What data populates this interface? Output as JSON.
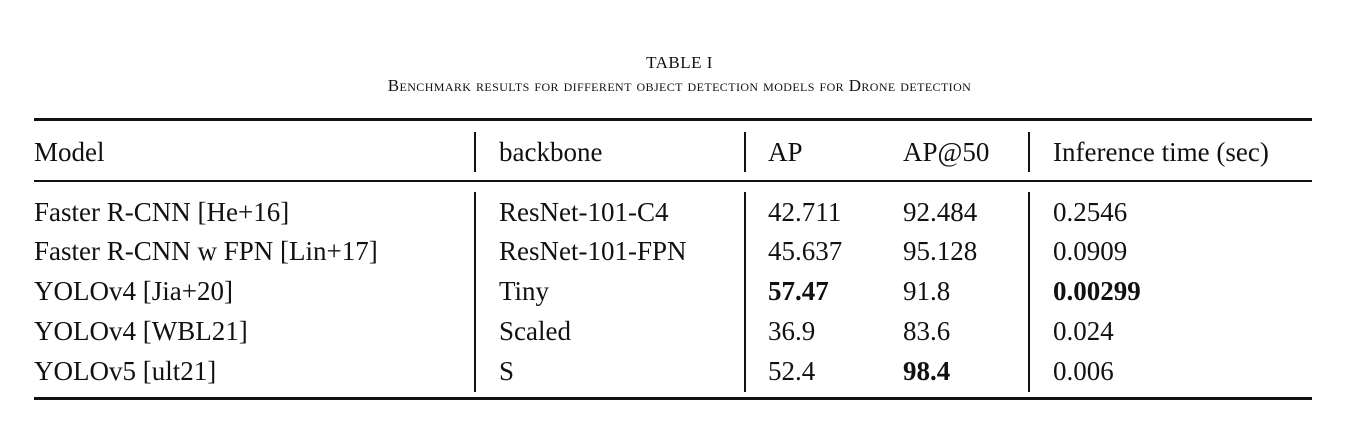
{
  "caption": {
    "label": "TABLE I",
    "title": "Benchmark results for different object detection models for Drone detection"
  },
  "table": {
    "headers": [
      "Model",
      "backbone",
      "AP",
      "AP@50",
      "Inference time (sec)"
    ],
    "rows": [
      [
        "Faster R-CNN [He+16]",
        "ResNet-101-C4",
        "42.711",
        "92.484",
        "0.2546"
      ],
      [
        "Faster R-CNN w FPN [Lin+17]",
        "ResNet-101-FPN",
        "45.637",
        "95.128",
        "0.0909"
      ],
      [
        "YOLOv4 [Jia+20]",
        "Tiny",
        "57.47",
        "91.8",
        "0.00299"
      ],
      [
        "YOLOv4 [WBL21]",
        "Scaled",
        "36.9",
        "83.6",
        "0.024"
      ],
      [
        "YOLOv5 [ult21]",
        "S",
        "52.4",
        "98.4",
        "0.006"
      ]
    ],
    "bold_cells": [
      [
        2,
        2
      ],
      [
        2,
        4
      ],
      [
        4,
        3
      ]
    ]
  }
}
